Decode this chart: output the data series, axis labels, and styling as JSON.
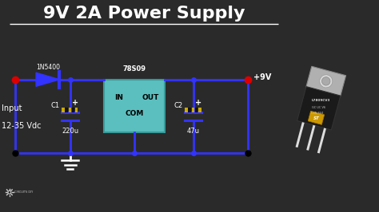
{
  "title": "9V 2A Power Supply",
  "bg_color": "#2a2a2a",
  "title_color": "#ffffff",
  "wire_color": "#3333ff",
  "wire_lw": 2.0,
  "red_dot_color": "#dd0000",
  "input_label_1": "Input",
  "input_label_2": "12-35 Vdc",
  "diode_label": "1N5400",
  "ic_label": "78S09",
  "ic_in": "IN",
  "ic_out": "OUT",
  "ic_com": "COM",
  "ic_color": "#5bbfbf",
  "ic_border": "#3a9a9a",
  "c1_label": "C1",
  "c1_value": "220u",
  "c2_label": "C2",
  "c2_value": "47u",
  "output_label": "+9V",
  "ground_color": "#000000",
  "text_color": "#ffffff",
  "cap_stripe_colors": [
    "#ccaa00",
    "#111111"
  ],
  "logo_color": "#cccccc"
}
